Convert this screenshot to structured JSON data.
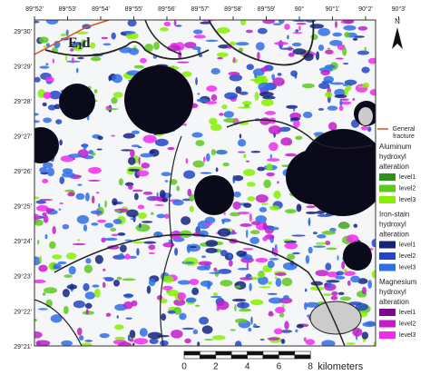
{
  "top_ticks": [
    "89°52'",
    "89°53'",
    "89°54'",
    "89°55'",
    "89°56'",
    "89°57'",
    "89°58'",
    "89°59'",
    "90°",
    "90°1'",
    "90°2'",
    "90°3'"
  ],
  "left_ticks": [
    "29°30'",
    "29°29'",
    "29°28'",
    "29°27'",
    "29°26'",
    "29°25'",
    "29°24'",
    "29°23'",
    "29°22'",
    "29°21'"
  ],
  "map_label": {
    "main": "E",
    "sub": "1",
    "suffix": "d"
  },
  "north": "N",
  "fracture": {
    "label_lines": [
      "General",
      "fracture"
    ],
    "color": "#e0502a"
  },
  "legend_groups": [
    {
      "title_lines": [
        "Aluminum",
        "hydroxyl",
        "alteration"
      ],
      "levels": [
        {
          "label": "level1",
          "color": "#2f8f1f"
        },
        {
          "label": "level2",
          "color": "#5fc81e"
        },
        {
          "label": "level3",
          "color": "#86f000"
        }
      ]
    },
    {
      "title_lines": [
        "Iron-stain",
        "hydroxyl",
        "alteration"
      ],
      "levels": [
        {
          "label": "level1",
          "color": "#14237e"
        },
        {
          "label": "level2",
          "color": "#2347c4"
        },
        {
          "label": "level3",
          "color": "#2f6fe6"
        }
      ]
    },
    {
      "title_lines": [
        "Magnesium",
        "hydroxyl",
        "alteration"
      ],
      "levels": [
        {
          "label": "level1",
          "color": "#7d0a8a"
        },
        {
          "label": "level2",
          "color": "#c21ccb"
        },
        {
          "label": "level3",
          "color": "#f02cf0"
        }
      ]
    }
  ],
  "scale": {
    "ticks": [
      0,
      2,
      4,
      6,
      8
    ],
    "unit": "kilometers"
  }
}
